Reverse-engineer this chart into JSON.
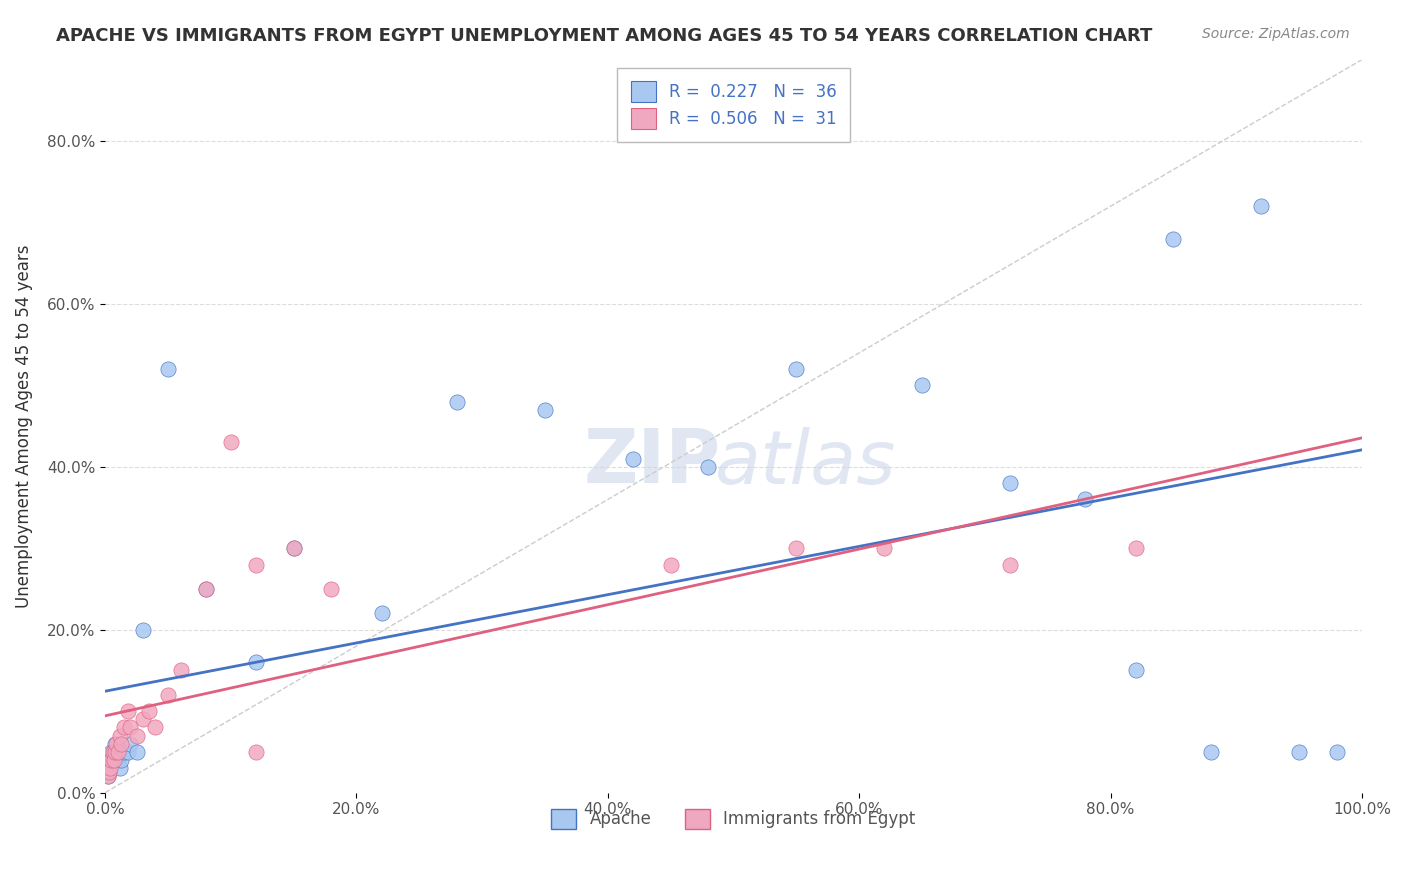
{
  "title": "APACHE VS IMMIGRANTS FROM EGYPT UNEMPLOYMENT AMONG AGES 45 TO 54 YEARS CORRELATION CHART",
  "source": "Source: ZipAtlas.com",
  "ylabel": "Unemployment Among Ages 45 to 54 years",
  "xlim": [
    0.0,
    1.0
  ],
  "ylim": [
    0.0,
    0.9
  ],
  "yticks": [
    0.0,
    0.2,
    0.4,
    0.6,
    0.8
  ],
  "xticks": [
    0.0,
    0.2,
    0.4,
    0.6,
    0.8,
    1.0
  ],
  "xtick_labels": [
    "0.0%",
    "20.0%",
    "40.0%",
    "60.0%",
    "80.0%",
    "100.0%"
  ],
  "ytick_labels": [
    "0.0%",
    "20.0%",
    "40.0%",
    "60.0%",
    "80.0%"
  ],
  "legend_R1": "0.227",
  "legend_N1": "36",
  "legend_R2": "0.506",
  "legend_N2": "31",
  "color_apache": "#a8c8f0",
  "color_egypt": "#f0a8c0",
  "color_apache_line": "#4472c4",
  "color_egypt_line": "#e06080",
  "background_color": "#ffffff",
  "apache_x": [
    0.002,
    0.003,
    0.004,
    0.005,
    0.006,
    0.007,
    0.008,
    0.009,
    0.01,
    0.011,
    0.012,
    0.013,
    0.015,
    0.018,
    0.02,
    0.025,
    0.03,
    0.05,
    0.08,
    0.12,
    0.15,
    0.22,
    0.28,
    0.35,
    0.42,
    0.48,
    0.55,
    0.65,
    0.72,
    0.78,
    0.82,
    0.85,
    0.88,
    0.92,
    0.95,
    0.98
  ],
  "apache_y": [
    0.02,
    0.03,
    0.04,
    0.05,
    0.04,
    0.05,
    0.06,
    0.05,
    0.04,
    0.05,
    0.03,
    0.04,
    0.05,
    0.05,
    0.06,
    0.05,
    0.2,
    0.52,
    0.25,
    0.16,
    0.3,
    0.22,
    0.48,
    0.47,
    0.41,
    0.4,
    0.52,
    0.5,
    0.38,
    0.36,
    0.15,
    0.68,
    0.05,
    0.72,
    0.05,
    0.05
  ],
  "egypt_x": [
    0.002,
    0.003,
    0.004,
    0.005,
    0.006,
    0.007,
    0.008,
    0.009,
    0.01,
    0.012,
    0.013,
    0.015,
    0.018,
    0.02,
    0.025,
    0.03,
    0.035,
    0.04,
    0.05,
    0.06,
    0.08,
    0.1,
    0.12,
    0.15,
    0.18,
    0.12,
    0.45,
    0.55,
    0.62,
    0.72,
    0.82
  ],
  "egypt_y": [
    0.02,
    0.025,
    0.03,
    0.04,
    0.05,
    0.04,
    0.05,
    0.06,
    0.05,
    0.07,
    0.06,
    0.08,
    0.1,
    0.08,
    0.07,
    0.09,
    0.1,
    0.08,
    0.12,
    0.15,
    0.25,
    0.43,
    0.28,
    0.3,
    0.25,
    0.05,
    0.28,
    0.3,
    0.3,
    0.28,
    0.3
  ]
}
